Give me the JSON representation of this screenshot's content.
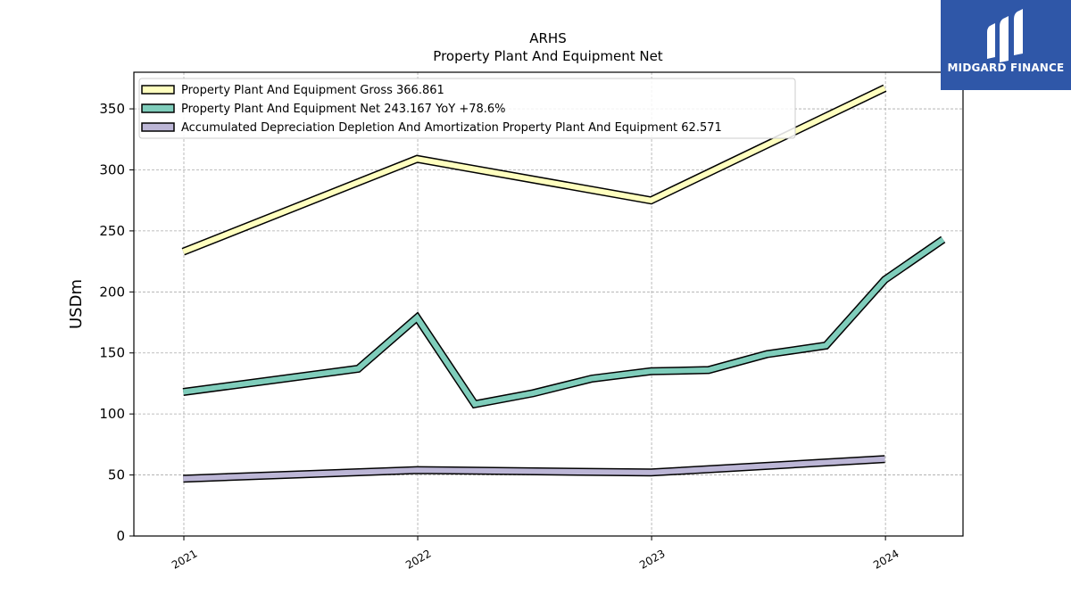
{
  "chart_data": {
    "type": "line",
    "title": "ARHS",
    "subtitle": "Property Plant And Equipment Net",
    "ylabel": "USDm",
    "xlabel": "",
    "ylim": [
      0,
      380
    ],
    "yticks": [
      0,
      50,
      100,
      150,
      200,
      250,
      300,
      350
    ],
    "xlim": [
      "2020-10-15",
      "2024-05-01"
    ],
    "xticks": [
      "2021",
      "2022",
      "2023",
      "2024"
    ],
    "grid": true,
    "legend_position": "top-left",
    "series": [
      {
        "name": "Property Plant And Equipment Gross",
        "legend": "Property Plant And Equipment Gross  366.861",
        "color": "#ffffbf",
        "points": [
          [
            "2020-12-31",
            233
          ],
          [
            "2021-12-31",
            309
          ],
          [
            "2022-12-31",
            275
          ],
          [
            "2023-12-31",
            367
          ]
        ]
      },
      {
        "name": "Property Plant And Equipment Net",
        "legend": "Property Plant And Equipment Net  243.167 YoY +78.6%",
        "color": "#7fcdbb",
        "points": [
          [
            "2020-12-31",
            118
          ],
          [
            "2021-09-30",
            137
          ],
          [
            "2021-12-31",
            179
          ],
          [
            "2022-03-31",
            108
          ],
          [
            "2022-06-30",
            117
          ],
          [
            "2022-09-30",
            129
          ],
          [
            "2022-12-31",
            135
          ],
          [
            "2023-03-31",
            136
          ],
          [
            "2023-06-30",
            149
          ],
          [
            "2023-09-30",
            156
          ],
          [
            "2023-12-31",
            210
          ],
          [
            "2024-03-31",
            243
          ]
        ]
      },
      {
        "name": "Accumulated Depreciation Depletion And Amortization Property Plant And Equipment",
        "legend": "Accumulated Depreciation Depletion And Amortization Property Plant And Equipment  62.571",
        "color": "#bcb6d6",
        "points": [
          [
            "2020-12-31",
            47
          ],
          [
            "2021-12-31",
            54
          ],
          [
            "2022-12-31",
            52
          ],
          [
            "2023-12-31",
            63
          ]
        ]
      }
    ]
  },
  "logo": {
    "text": "MIDGARD FINANCE"
  }
}
